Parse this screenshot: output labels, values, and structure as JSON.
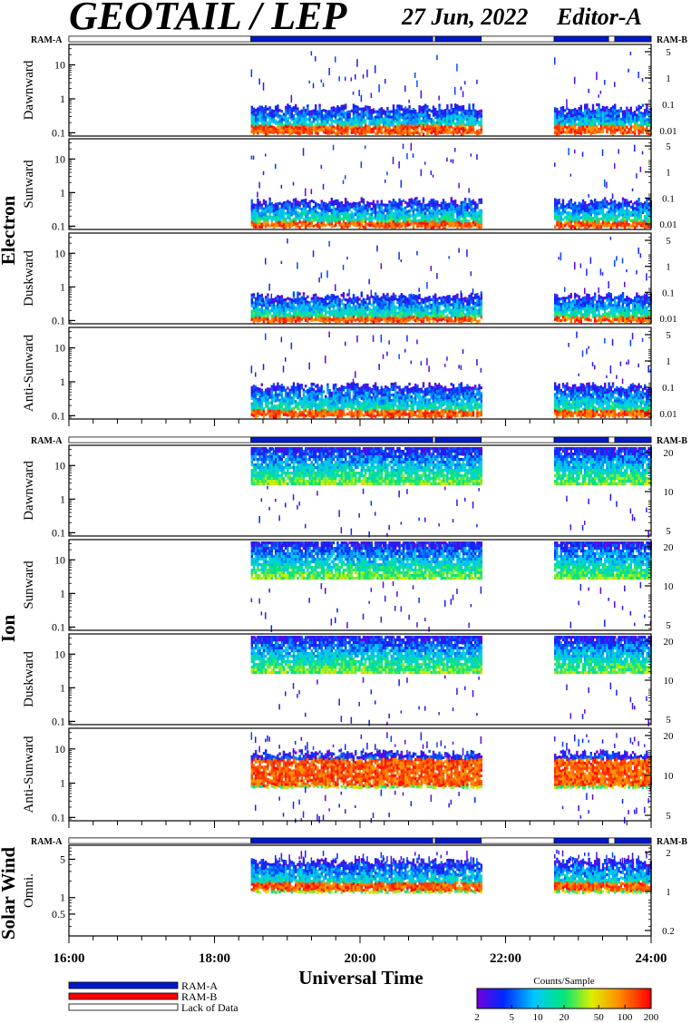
{
  "header": {
    "title": "GEOTAIL / LEP",
    "date": "27 Jun, 2022",
    "editor": "Editor-A"
  },
  "colors": {
    "ram_a": "#0019c8",
    "ram_b": "#ff0000",
    "lack_of_data": "#ffffff"
  },
  "labels": {
    "ram_a": "RAM-A",
    "ram_b": "RAM-B",
    "lack_of_data": "Lack of Data",
    "x_axis": "Universal Time",
    "colorbar_title": "Counts/Sample"
  },
  "chart_data": {
    "type": "heatmap",
    "xlabel": "Universal Time",
    "xlim": [
      "16:00",
      "24:00"
    ],
    "x_ticks": [
      "16:00",
      "18:00",
      "20:00",
      "22:00",
      "24:00"
    ],
    "colorbar": {
      "title": "Counts/Sample",
      "scale": "log",
      "range": [
        2,
        200
      ],
      "ticks": [
        "2",
        "5",
        "10",
        "20",
        "50",
        "100",
        "200"
      ]
    },
    "mode_bar_segments": [
      {
        "start": "16:00",
        "end": "18:30",
        "mode": "lack_of_data"
      },
      {
        "start": "18:30",
        "end": "21:00",
        "mode": "ram_a"
      },
      {
        "start": "21:00",
        "end": "21:02",
        "mode": "lack_of_data"
      },
      {
        "start": "21:02",
        "end": "21:40",
        "mode": "ram_a"
      },
      {
        "start": "21:40",
        "end": "22:40",
        "mode": "lack_of_data"
      },
      {
        "start": "22:40",
        "end": "23:25",
        "mode": "ram_a"
      },
      {
        "start": "23:25",
        "end": "23:30",
        "mode": "lack_of_data"
      },
      {
        "start": "23:30",
        "end": "24:00",
        "mode": "ram_a"
      }
    ],
    "groups": [
      {
        "name": "Electron",
        "mode_labels": [
          "RAM-A",
          "RAM-B"
        ],
        "panels": [
          {
            "name": "Dawnward",
            "y_scale": "log",
            "y_ticks": [
              "0.1",
              "1",
              "10"
            ],
            "y2_ticks": [
              "0.01",
              "0.1",
              "1",
              "5"
            ],
            "segments": [
              {
                "start": "18:30",
                "end": "21:40"
              },
              {
                "start": "22:40",
                "end": "24:00"
              }
            ],
            "band": [
              0.1,
              0.45
            ],
            "peak": [
              0.1,
              0.18
            ]
          },
          {
            "name": "Sunward",
            "y_scale": "log",
            "y_ticks": [
              "0.1",
              "1",
              "10"
            ],
            "y2_ticks": [
              "0.01",
              "0.1",
              "1",
              "5"
            ],
            "segments": [
              {
                "start": "18:30",
                "end": "21:40"
              },
              {
                "start": "22:40",
                "end": "24:00"
              }
            ],
            "band": [
              0.1,
              0.45
            ],
            "peak": [
              0.1,
              0.15
            ]
          },
          {
            "name": "Duskward",
            "y_scale": "log",
            "y_ticks": [
              "0.1",
              "1",
              "10"
            ],
            "y2_ticks": [
              "0.01",
              "0.1",
              "1",
              "5"
            ],
            "segments": [
              {
                "start": "18:30",
                "end": "21:40"
              },
              {
                "start": "22:40",
                "end": "24:00"
              }
            ],
            "band": [
              0.1,
              0.45
            ],
            "peak": [
              0.1,
              0.14
            ]
          },
          {
            "name": "Anti-Sunward",
            "y_scale": "log",
            "y_ticks": [
              "0.1",
              "1",
              "10"
            ],
            "y2_ticks": [
              "0.01",
              "0.1",
              "1",
              "5"
            ],
            "segments": [
              {
                "start": "18:30",
                "end": "21:40"
              },
              {
                "start": "22:40",
                "end": "24:00"
              }
            ],
            "band": [
              0.1,
              0.6
            ],
            "peak": [
              0.1,
              0.16
            ]
          }
        ]
      },
      {
        "name": "Ion",
        "mode_labels": [
          "RAM-A",
          "RAM-B"
        ],
        "panels": [
          {
            "name": "Dawnward",
            "y_scale": "log",
            "y_ticks": [
              "0.1",
              "1",
              "10"
            ],
            "y2_ticks": [
              "5",
              "10",
              "20"
            ],
            "segments": [
              {
                "start": "18:30",
                "end": "21:40"
              },
              {
                "start": "22:40",
                "end": "24:00"
              }
            ],
            "band": [
              3,
              40
            ],
            "peak": null
          },
          {
            "name": "Sunward",
            "y_scale": "log",
            "y_ticks": [
              "0.1",
              "1",
              "10"
            ],
            "y2_ticks": [
              "5",
              "10",
              "20"
            ],
            "segments": [
              {
                "start": "18:30",
                "end": "21:40"
              },
              {
                "start": "22:40",
                "end": "24:00"
              }
            ],
            "band": [
              3,
              40
            ],
            "peak": null
          },
          {
            "name": "Duskward",
            "y_scale": "log",
            "y_ticks": [
              "0.1",
              "1",
              "10"
            ],
            "y2_ticks": [
              "5",
              "10",
              "20"
            ],
            "segments": [
              {
                "start": "18:30",
                "end": "21:40"
              },
              {
                "start": "22:40",
                "end": "24:00"
              }
            ],
            "band": [
              3,
              40
            ],
            "peak": null
          },
          {
            "name": "Anti-Sunward",
            "y_scale": "log",
            "y_ticks": [
              "0.1",
              "1",
              "10"
            ],
            "y2_ticks": [
              "5",
              "10",
              "20"
            ],
            "segments": [
              {
                "start": "18:30",
                "end": "21:40"
              },
              {
                "start": "22:40",
                "end": "24:00"
              }
            ],
            "band": [
              0.8,
              6
            ],
            "peak": [
              0.9,
              5.5
            ]
          }
        ]
      },
      {
        "name": "Solar Wind",
        "mode_labels": [
          "RAM-A",
          "RAM-B"
        ],
        "panels": [
          {
            "name": "Omni.",
            "y_scale": "log",
            "y_ticks": [
              "0.5",
              "1",
              "5"
            ],
            "y2_ticks": [
              "0.2",
              "1",
              "2"
            ],
            "segments": [
              {
                "start": "18:30",
                "end": "21:40"
              },
              {
                "start": "22:40",
                "end": "24:00"
              }
            ],
            "band": [
              1.3,
              4
            ],
            "peak": [
              1.4,
              2
            ]
          }
        ]
      }
    ]
  }
}
